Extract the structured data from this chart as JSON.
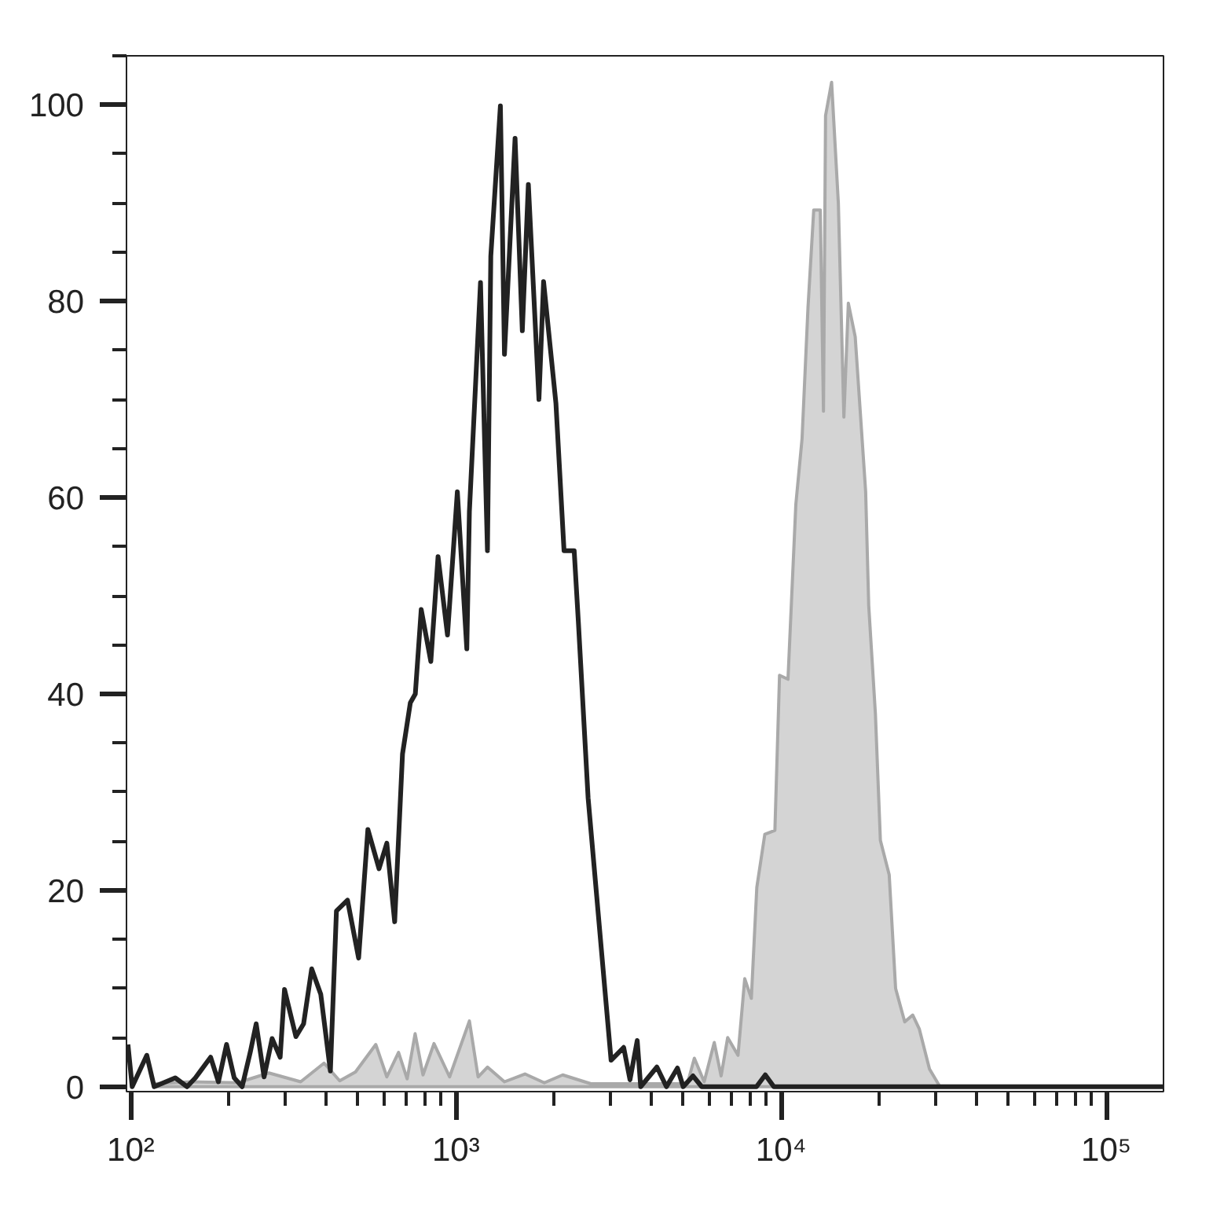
{
  "chart_data": {
    "type": "line",
    "series": [
      {
        "type": "area",
        "color": "#a9a9a9",
        "x": [
          118,
          153,
          213,
          266,
          333,
          393,
          439,
          491,
          567,
          613,
          666,
          708,
          749,
          792,
          856,
          956,
          1100,
          1170,
          1250,
          1410,
          1630,
          1870,
          2130,
          2600,
          3250,
          4300,
          5150,
          5410,
          5800,
          6230,
          6540,
          6850,
          7370,
          7730,
          8100,
          8420,
          8910,
          9570,
          9890,
          10500,
          11100,
          11600,
          12100,
          12600,
          13200,
          13500,
          13700,
          14300,
          15000,
          15600,
          16100,
          16900,
          18200,
          18600,
          19500,
          20200,
          21500,
          22500,
          24000,
          25400,
          26600,
          28600,
          30800,
          150000
        ],
        "values": [
          0.3,
          0.5,
          0.4,
          1.4,
          0.5,
          2.4,
          0.6,
          1.5,
          4.3,
          1.0,
          3.5,
          0.8,
          5.4,
          1.2,
          4.4,
          1.0,
          6.7,
          1.0,
          2.0,
          0.5,
          1.3,
          0.4,
          1.2,
          0.3,
          0.3,
          0.3,
          0.3,
          2.9,
          0.5,
          4.5,
          1.1,
          5,
          3.2,
          11,
          9,
          20.3,
          25.7,
          26.1,
          41.9,
          41.5,
          59.3,
          66,
          79.4,
          89.3,
          89.3,
          68.8,
          98.9,
          102.3,
          90,
          68.2,
          79.8,
          76.4,
          60.6,
          49,
          38,
          25.1,
          21.6,
          10,
          6.6,
          7.3,
          5.9,
          1.8,
          0,
          0
        ]
      },
      {
        "color": "#222222",
        "x": [
          98,
          101,
          112,
          118,
          137,
          149,
          158,
          176,
          186,
          197,
          208,
          220,
          233,
          243,
          257,
          272,
          288,
          297,
          322,
          340,
          360,
          384,
          411,
          429,
          464,
          502,
          536,
          580,
          613,
          648,
          685,
          724,
          750,
          782,
          837,
          881,
          942,
          1010,
          1080,
          1100,
          1190,
          1250,
          1280,
          1370,
          1410,
          1520,
          1600,
          1670,
          1800,
          1860,
          2030,
          2150,
          2310,
          2380,
          2550,
          2800,
          3000,
          3280,
          3430,
          3610,
          3700,
          4150,
          4440,
          4800,
          5000,
          5360,
          5700,
          8400,
          8940,
          9500,
          150000
        ],
        "values": [
          4.3,
          0,
          3.2,
          0,
          0.9,
          0,
          0.9,
          3.0,
          0.5,
          4.3,
          0.9,
          0,
          3.5,
          6.4,
          1.0,
          4.9,
          3.0,
          9.9,
          5.1,
          6.4,
          12,
          9.4,
          1.6,
          17.9,
          19,
          13.1,
          26.2,
          22.2,
          24.8,
          16.8,
          33.9,
          39.1,
          40,
          48.6,
          43.3,
          54,
          46,
          60.6,
          44.6,
          58.6,
          81.9,
          54.6,
          84.6,
          99.9,
          74.6,
          96.6,
          77,
          91.9,
          70,
          82,
          69.6,
          54.6,
          54.6,
          47.3,
          29.4,
          14,
          2.7,
          4,
          0.7,
          4.7,
          0,
          2,
          0,
          1.9,
          0,
          1.1,
          0,
          0,
          1.2,
          0,
          0
        ]
      }
    ],
    "log": "x",
    "xlim": [
      97,
      150000
    ],
    "ylim": [
      -0.5,
      105
    ],
    "xticks": [
      {
        "value": 100,
        "label": "10²"
      },
      {
        "value": 200,
        "label": null
      },
      {
        "value": 300,
        "label": null
      },
      {
        "value": 400,
        "label": null
      },
      {
        "value": 500,
        "label": null
      },
      {
        "value": 600,
        "label": null
      },
      {
        "value": 700,
        "label": null
      },
      {
        "value": 800,
        "label": null
      },
      {
        "value": 900,
        "label": null
      },
      {
        "value": 1000,
        "label": "10³"
      },
      {
        "value": 2000,
        "label": null
      },
      {
        "value": 3000,
        "label": null
      },
      {
        "value": 4000,
        "label": null
      },
      {
        "value": 5000,
        "label": null
      },
      {
        "value": 6000,
        "label": null
      },
      {
        "value": 7000,
        "label": null
      },
      {
        "value": 8000,
        "label": null
      },
      {
        "value": 9000,
        "label": null
      },
      {
        "value": 10000,
        "label": "10⁴"
      },
      {
        "value": 20000,
        "label": null
      },
      {
        "value": 30000,
        "label": null
      },
      {
        "value": 40000,
        "label": null
      },
      {
        "value": 50000,
        "label": null
      },
      {
        "value": 60000,
        "label": null
      },
      {
        "value": 70000,
        "label": null
      },
      {
        "value": 80000,
        "label": null
      },
      {
        "value": 90000,
        "label": null
      },
      {
        "value": 100000,
        "label": "10⁵"
      }
    ],
    "yticks": [
      0,
      {
        "value": 5,
        "label": null
      },
      {
        "value": 10,
        "label": null
      },
      {
        "value": 15,
        "label": null
      },
      20,
      {
        "value": 25,
        "label": null
      },
      {
        "value": 30,
        "label": null
      },
      {
        "value": 35,
        "label": null
      },
      40,
      {
        "value": 45,
        "label": null
      },
      {
        "value": 50,
        "label": null
      },
      {
        "value": 55,
        "label": null
      },
      60,
      {
        "value": 65,
        "label": null
      },
      {
        "value": 70,
        "label": null
      },
      {
        "value": 75,
        "label": null
      },
      80,
      {
        "value": 85,
        "label": null
      },
      {
        "value": 90,
        "label": null
      },
      {
        "value": 95,
        "label": null
      },
      100,
      {
        "value": 105,
        "label": null
      }
    ],
    "grid": false
  }
}
